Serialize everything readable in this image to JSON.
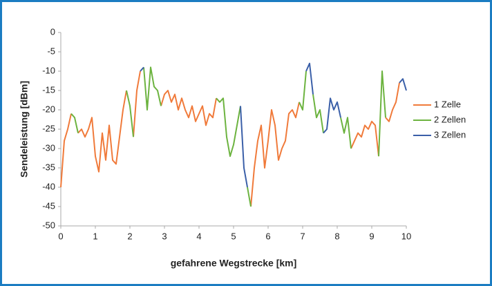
{
  "chart_data": {
    "type": "line",
    "xlabel": "gefahrene Wegstrecke [km]",
    "ylabel": "Sendeleistung [dBm]",
    "xlim": [
      0,
      10
    ],
    "ylim": [
      -50,
      0
    ],
    "xticks": [
      0,
      1,
      2,
      3,
      4,
      5,
      6,
      7,
      8,
      9,
      10
    ],
    "yticks": [
      0,
      -5,
      -10,
      -15,
      -20,
      -25,
      -30,
      -35,
      -40,
      -45,
      -50
    ],
    "legend": "right",
    "x": [
      0,
      0.1,
      0.2,
      0.3,
      0.4,
      0.5,
      0.6,
      0.7,
      0.8,
      0.9,
      1,
      1.1,
      1.2,
      1.3,
      1.4,
      1.5,
      1.6,
      1.7,
      1.8,
      1.9,
      2,
      2.1,
      2.2,
      2.3,
      2.4,
      2.5,
      2.6,
      2.7,
      2.8,
      2.9,
      3,
      3.1,
      3.2,
      3.3,
      3.4,
      3.5,
      3.6,
      3.7,
      3.8,
      3.9,
      4,
      4.1,
      4.2,
      4.3,
      4.4,
      4.5,
      4.6,
      4.7,
      4.8,
      4.9,
      5,
      5.1,
      5.2,
      5.3,
      5.4,
      5.5,
      5.6,
      5.7,
      5.8,
      5.9,
      6,
      6.1,
      6.2,
      6.3,
      6.4,
      6.5,
      6.6,
      6.7,
      6.8,
      6.9,
      7,
      7.1,
      7.2,
      7.3,
      7.4,
      7.5,
      7.6,
      7.7,
      7.8,
      7.9,
      8,
      8.1,
      8.2,
      8.3,
      8.4,
      8.5,
      8.6,
      8.7,
      8.8,
      8.9,
      9,
      9.1,
      9.2,
      9.3,
      9.4,
      9.5,
      9.6,
      9.7,
      9.8,
      9.9,
      10
    ],
    "series": [
      {
        "name": "1 Zelle",
        "color": "#f07a3a",
        "values": [
          -40,
          -28,
          -25,
          -21,
          null,
          -26,
          -25,
          -27,
          -25,
          -22,
          -32,
          -36,
          -26,
          -33,
          -24,
          -33,
          -34,
          -27,
          -20,
          -15,
          null,
          -27,
          -15,
          -10,
          null,
          null,
          null,
          null,
          null,
          -19,
          -16,
          -15,
          -18,
          -16,
          -20,
          -17,
          -20,
          -22,
          -19,
          -23,
          -21,
          -19,
          -24,
          -21,
          -22,
          -17,
          null,
          null,
          null,
          null,
          null,
          null,
          null,
          null,
          null,
          -45,
          -35,
          -28,
          -24,
          -35,
          -28,
          -20,
          -24,
          -33,
          -30,
          -28,
          -21,
          -20,
          -22,
          -18,
          null,
          null,
          null,
          null,
          null,
          null,
          null,
          null,
          null,
          null,
          null,
          null,
          null,
          null,
          -30,
          -28,
          -26,
          -27,
          -24,
          -25,
          -23,
          -24,
          -32,
          null,
          -22,
          -23,
          -20,
          -18,
          -13,
          null,
          null
        ]
      },
      {
        "name": "2 Zellen",
        "color": "#6cb33f",
        "values": [
          null,
          null,
          null,
          -21,
          -22,
          -26,
          null,
          null,
          null,
          null,
          null,
          null,
          null,
          null,
          null,
          null,
          null,
          null,
          null,
          -15,
          -19,
          -27,
          null,
          null,
          -9,
          -20,
          -9,
          -14,
          -15,
          -19,
          null,
          null,
          null,
          null,
          null,
          null,
          null,
          null,
          null,
          null,
          null,
          null,
          null,
          null,
          null,
          -17,
          -18,
          -17,
          -27,
          -32,
          -29,
          -24,
          -19,
          null,
          -40,
          -45,
          null,
          null,
          null,
          null,
          null,
          null,
          null,
          null,
          null,
          null,
          null,
          null,
          null,
          -18,
          -20,
          -10,
          null,
          -16,
          -22,
          -20,
          -26,
          null,
          null,
          null,
          null,
          -22,
          -26,
          -22,
          -30,
          null,
          null,
          null,
          null,
          null,
          null,
          null,
          -32,
          -10,
          -22,
          null,
          null,
          null,
          null,
          null,
          null
        ]
      },
      {
        "name": "3 Zellen",
        "color": "#3a5fa8",
        "values": [
          null,
          null,
          null,
          null,
          null,
          null,
          null,
          null,
          null,
          null,
          null,
          null,
          null,
          null,
          null,
          null,
          null,
          null,
          null,
          null,
          null,
          null,
          null,
          -10,
          -9,
          null,
          null,
          null,
          null,
          null,
          null,
          null,
          null,
          null,
          null,
          null,
          null,
          null,
          null,
          null,
          null,
          null,
          null,
          null,
          null,
          null,
          null,
          null,
          null,
          null,
          null,
          null,
          -19,
          -35,
          -40,
          null,
          null,
          null,
          null,
          null,
          null,
          null,
          null,
          null,
          null,
          null,
          null,
          null,
          null,
          null,
          null,
          -10,
          -8,
          -16,
          null,
          null,
          -26,
          -25,
          -17,
          -20,
          -18,
          -22,
          null,
          null,
          null,
          null,
          null,
          null,
          null,
          null,
          null,
          null,
          null,
          null,
          null,
          null,
          null,
          null,
          -13,
          -12,
          -15
        ]
      }
    ]
  }
}
